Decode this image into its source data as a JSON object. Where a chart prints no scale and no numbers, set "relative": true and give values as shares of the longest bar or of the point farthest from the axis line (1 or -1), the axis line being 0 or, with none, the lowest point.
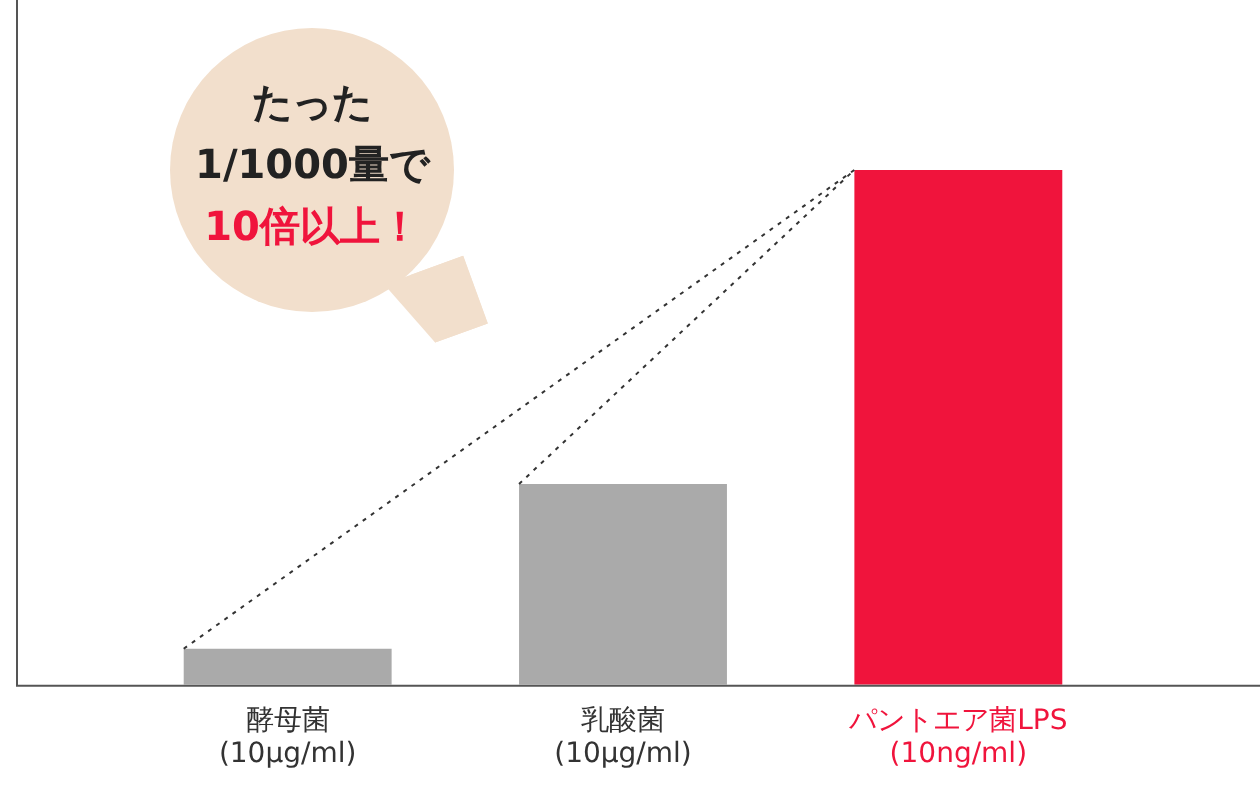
{
  "chart_data": {
    "type": "bar",
    "relative": true,
    "categories": [
      "酵母菌\n(10μg/ml)",
      "乳酸菌\n(10μg/ml)",
      "パントエア菌LPS\n(10ng/ml)"
    ],
    "values": [
      0.07,
      0.39,
      1
    ],
    "colors": [
      "#aaaaaa",
      "#aaaaaa",
      "#f0143c"
    ],
    "annotations": [
      "たった\n1/1000量で\n10倍以上！"
    ],
    "grid": false,
    "legend": false
  }
}
